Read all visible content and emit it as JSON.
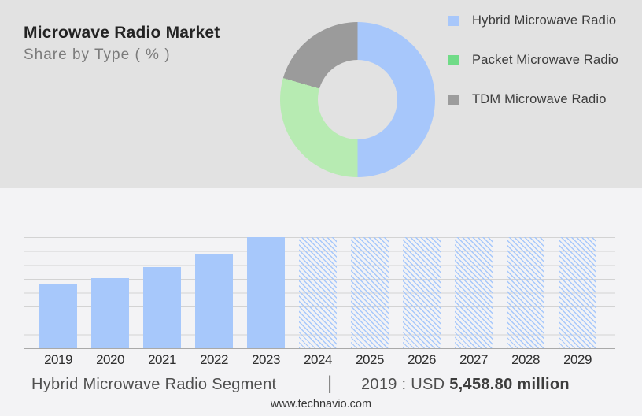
{
  "header": {
    "title": "Microwave Radio Market",
    "subtitle": "Share by Type ( % )"
  },
  "legend": {
    "items": [
      {
        "label": "Hybrid Microwave Radio",
        "color": "#a8c7fa"
      },
      {
        "label": "Packet Microwave Radio",
        "color": "#70db87"
      },
      {
        "label": "TDM Microwave Radio",
        "color": "#9c9c9c"
      }
    ]
  },
  "chart_data": [
    {
      "type": "pie",
      "variant": "donut",
      "title": "Share by Type ( % )",
      "legend_position": "right",
      "slices": [
        {
          "label": "Hybrid Microwave Radio",
          "value": 50,
          "color": "#a7c7fb"
        },
        {
          "label": "Packet Microwave Radio",
          "value": 29.5,
          "color": "#b7ebb2"
        },
        {
          "label": "TDM Microwave Radio",
          "value": 20.5,
          "color": "#9b9b9b"
        }
      ]
    },
    {
      "type": "bar",
      "categories": [
        "2019",
        "2020",
        "2021",
        "2022",
        "2023",
        "2024",
        "2025",
        "2026",
        "2027",
        "2028",
        "2029"
      ],
      "values": [
        58,
        63,
        73,
        85,
        100,
        100,
        100,
        100,
        100,
        100,
        100
      ],
      "ylabel": "relative bar height (% of chart max, no y-axis shown)",
      "ylim": [
        0,
        100
      ],
      "grid": true,
      "gridline_count": 9,
      "solid_bar_color": "#a7c8fb",
      "hatched_from_index": 5,
      "hatched_note": "2024-2029 are forecast bars drawn as diagonal hatch at full chart height",
      "known_point": {
        "year": "2019",
        "value": "USD 5,458.80 million"
      }
    }
  ],
  "footer": {
    "segment_label": "Hybrid Microwave Radio Segment",
    "separator": "|",
    "value_prefix": "2019 : USD ",
    "value_bold": "5,458.80 million",
    "website": "www.technavio.com"
  }
}
